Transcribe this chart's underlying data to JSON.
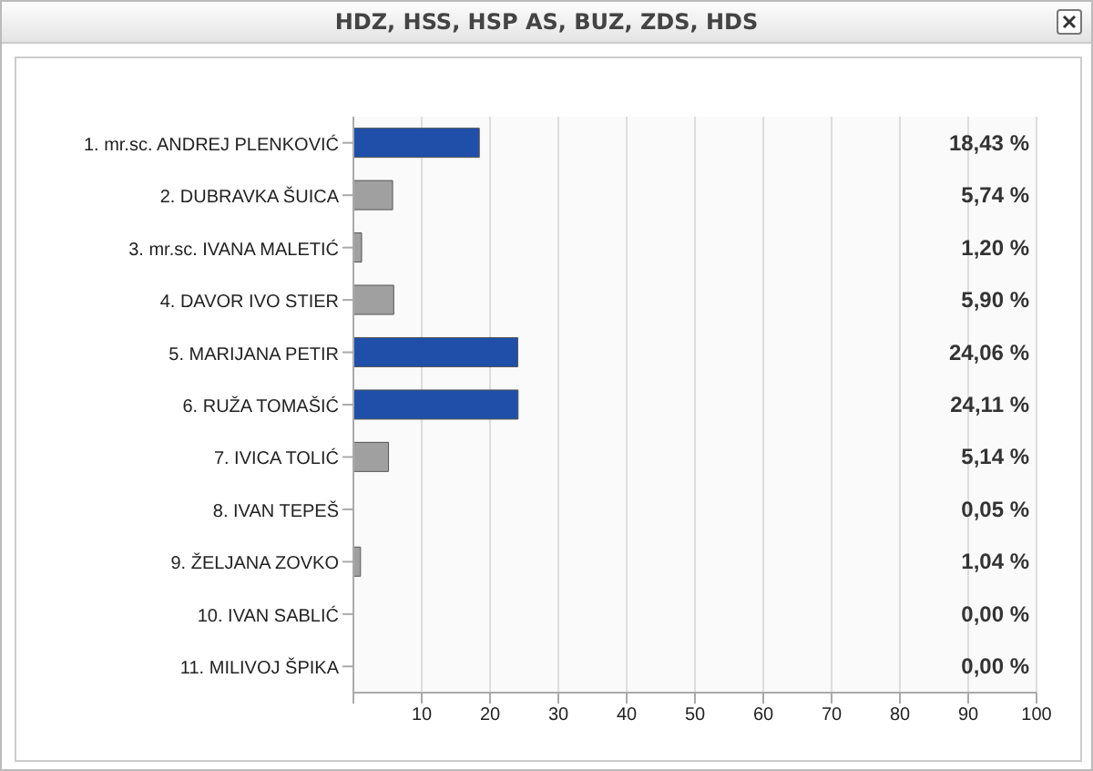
{
  "chart_data": {
    "type": "bar",
    "orientation": "horizontal",
    "title": "HDZ, HSS, HSP AS, BUZ, ZDS, HDS",
    "categories": [
      "1. mr.sc. ANDREJ PLENKOVIĆ",
      "2. DUBRAVKA ŠUICA",
      "3. mr.sc. IVANA MALETIĆ",
      "4. DAVOR IVO STIER",
      "5. MARIJANA PETIR",
      "6. RUŽA TOMAŠIĆ",
      "7. IVICA TOLIĆ",
      "8. IVAN TEPEŠ",
      "9. ŽELJANA ZOVKO",
      "10. IVAN SABLIĆ",
      "11. MILIVOJ ŠPIKA"
    ],
    "values": [
      18.43,
      5.74,
      1.2,
      5.9,
      24.06,
      24.11,
      5.14,
      0.05,
      1.04,
      0,
      0
    ],
    "value_labels": [
      "18,43 %",
      "5,74 %",
      "1,20 %",
      "5,90 %",
      "24,06 %",
      "24,11 %",
      "5,14 %",
      "0,05 %",
      "1,04 %",
      "0,00 %",
      "0,00 %"
    ],
    "colors": [
      "#1f4fa8",
      "#a0a0a0",
      "#a0a0a0",
      "#a0a0a0",
      "#1f4fa8",
      "#1f4fa8",
      "#a0a0a0",
      "#a0a0a0",
      "#a0a0a0",
      "#a0a0a0",
      "#a0a0a0"
    ],
    "xlim": [
      0,
      100
    ],
    "xticks": [
      {
        "value": 0,
        "label": null
      },
      10,
      20,
      30,
      40,
      50,
      60,
      70,
      80,
      90,
      100
    ],
    "grid": "x"
  }
}
